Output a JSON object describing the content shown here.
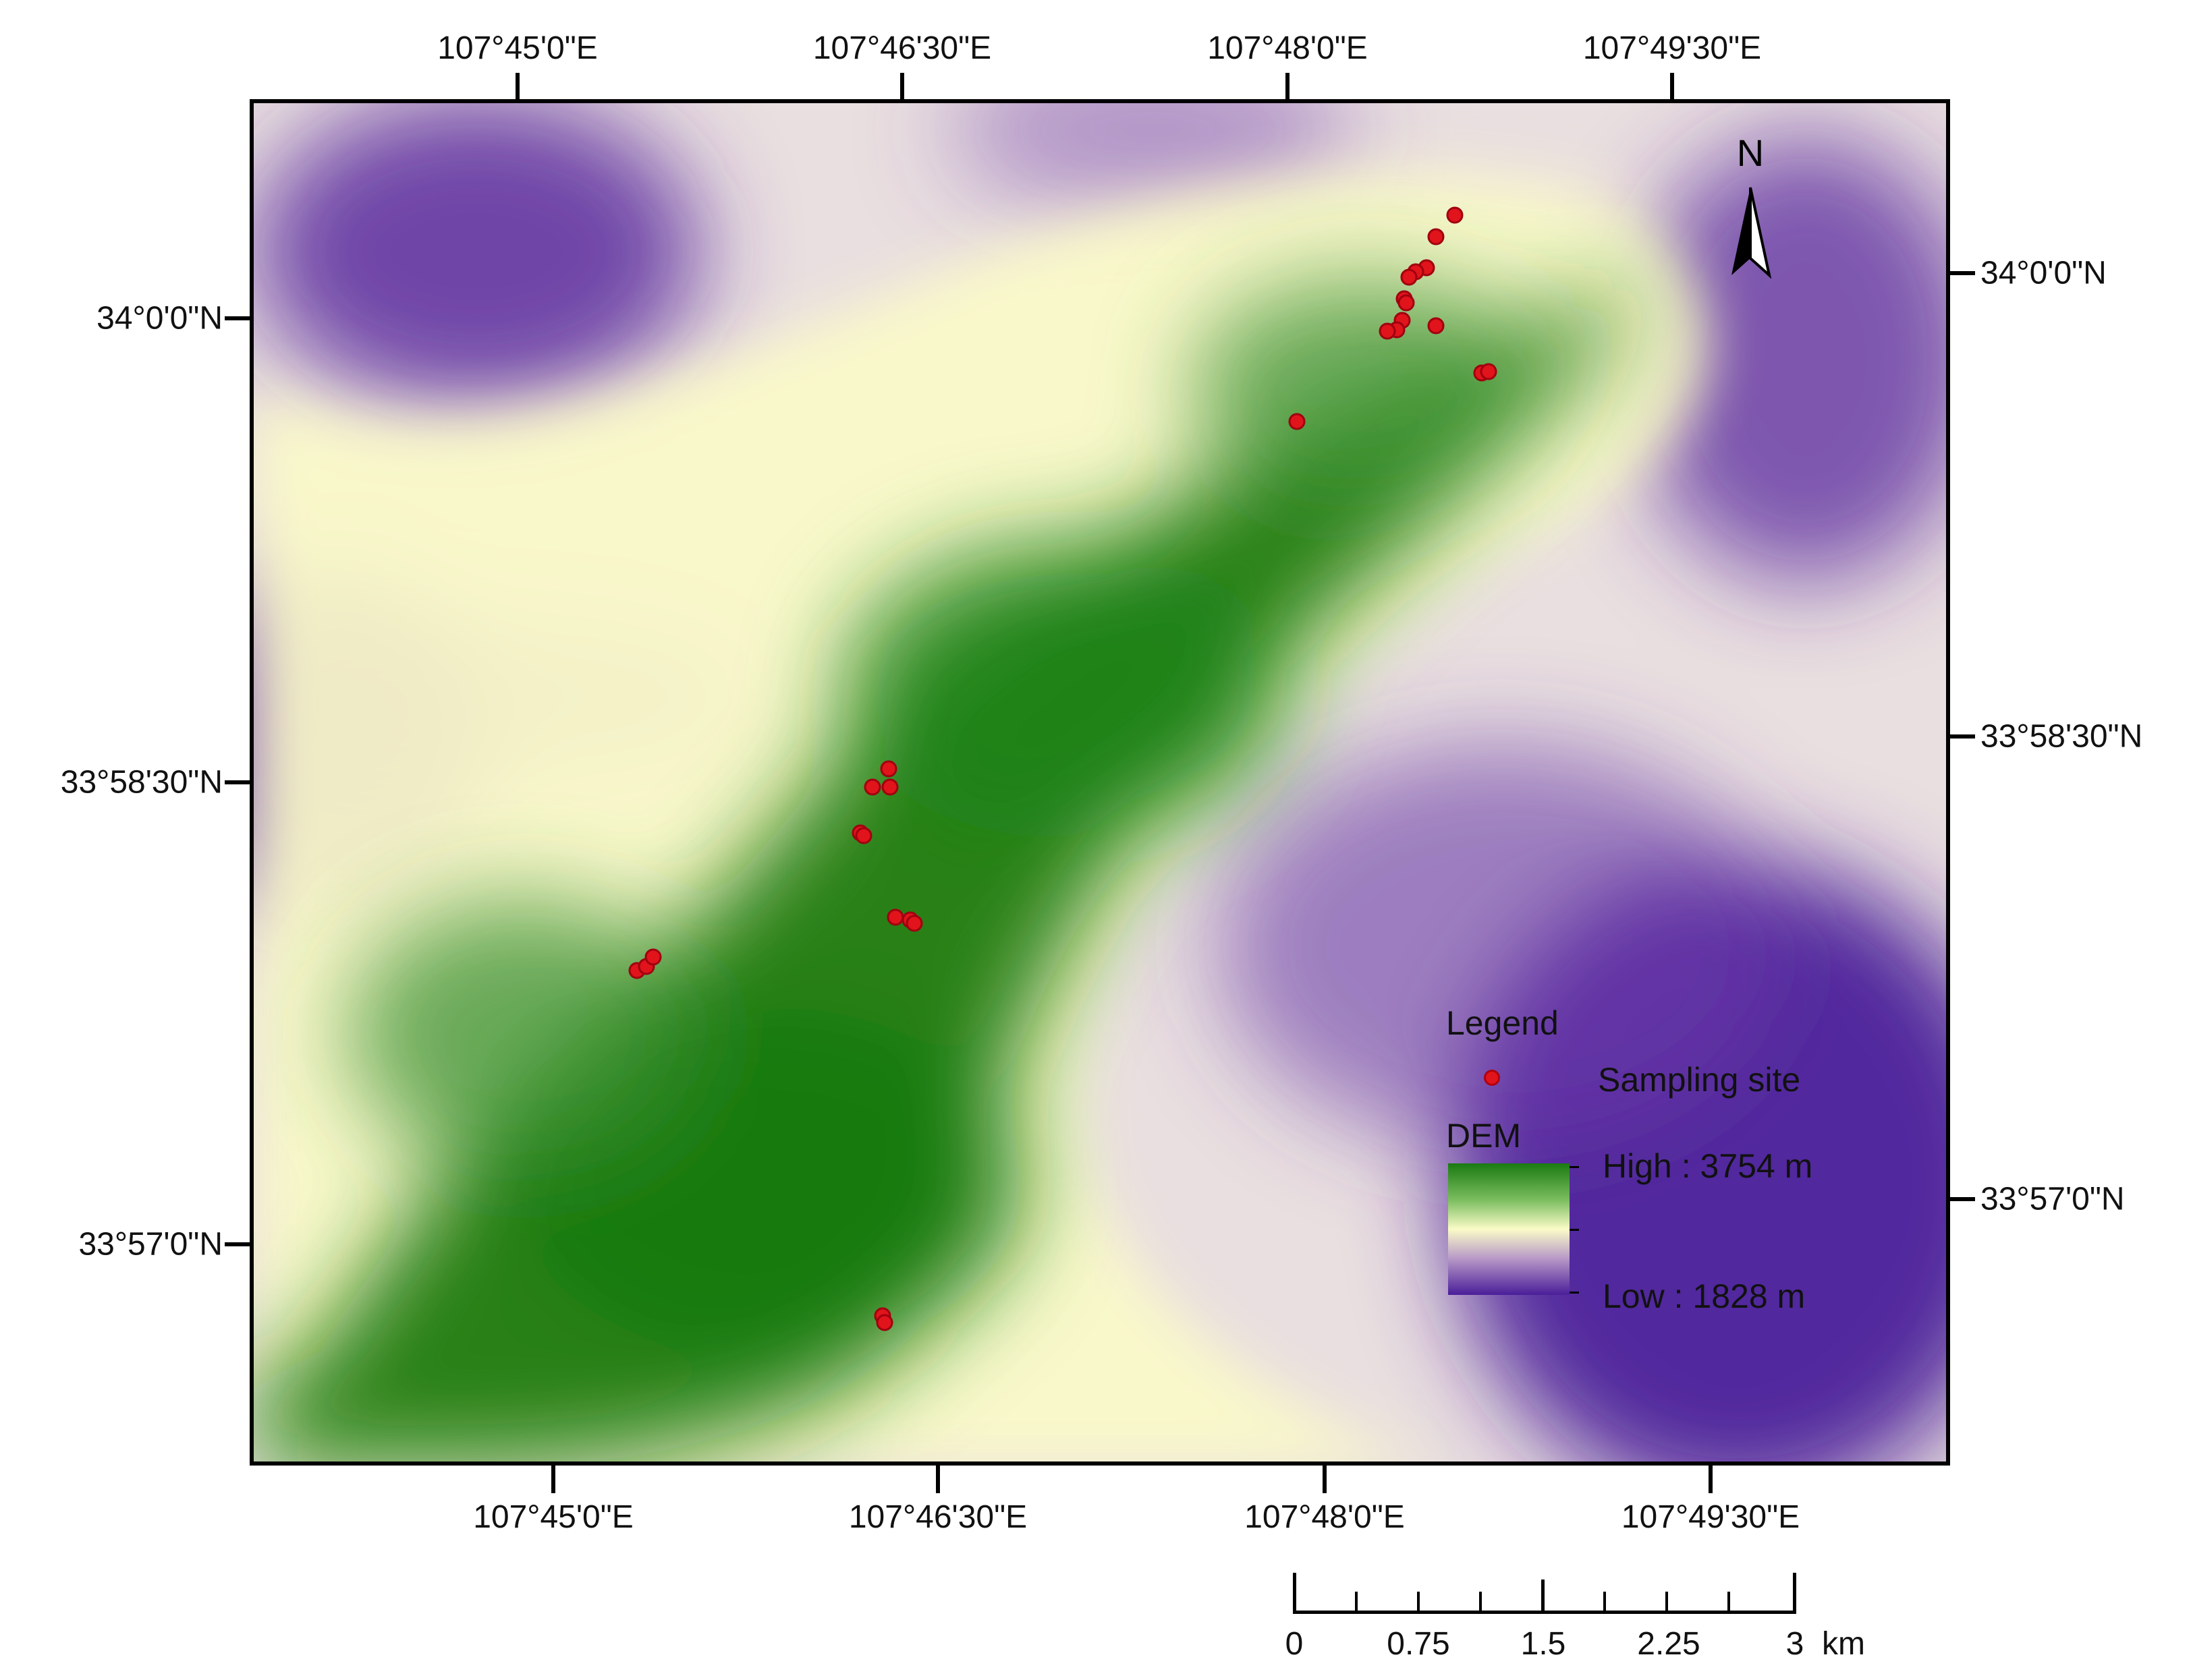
{
  "map": {
    "top_lon_labels": [
      "107°45'0\"E",
      "107°46'30\"E",
      "107°48'0\"E",
      "107°49'30\"E"
    ],
    "bottom_lon_labels": [
      "107°45'0\"E",
      "107°46'30\"E",
      "107°48'0\"E",
      "107°49'30\"E"
    ],
    "left_lat_labels": [
      "34°0'0\"N",
      "33°58'30\"N",
      "33°57'0\"N"
    ],
    "right_lat_labels": [
      "34°0'0\"N",
      "33°58'30\"N",
      "33°57'0\"N"
    ],
    "north_label": "N",
    "dem_colors": {
      "high": "#1a7a12",
      "mid": "#fbfbc8",
      "low": "#4a1e99"
    },
    "sampling_site_color": "#e0141a"
  },
  "legend": {
    "title": "Legend",
    "sampling_site_label": "Sampling site",
    "dem_title": "DEM",
    "high_label": "High : 3754 m",
    "low_label": "Low : 1828 m"
  },
  "scale_bar": {
    "labels": [
      "0",
      "0.75",
      "1.5",
      "2.25",
      "3"
    ],
    "unit": "km"
  }
}
